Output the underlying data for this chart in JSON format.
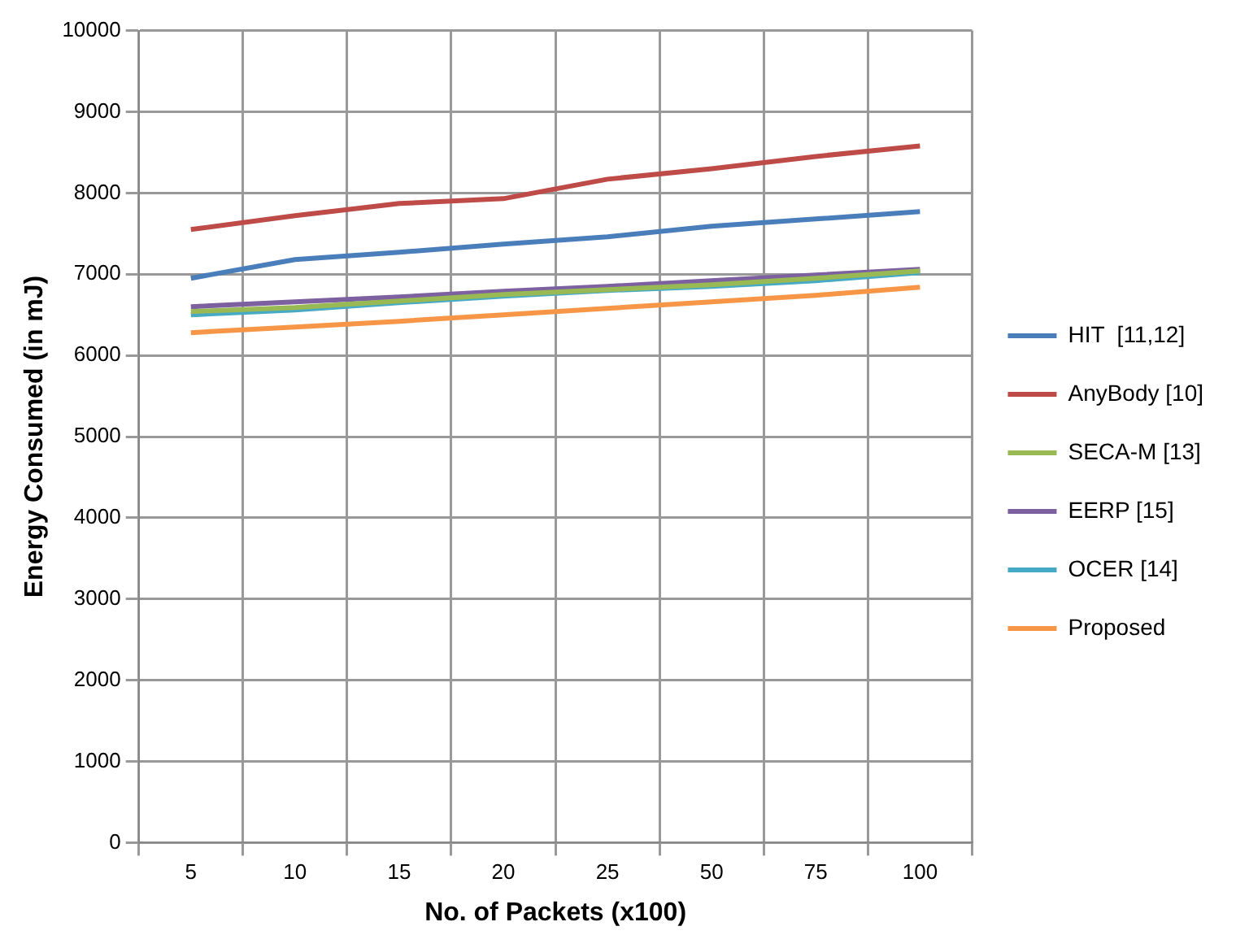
{
  "chart_data": {
    "type": "line",
    "xlabel": "No. of Packets (x100)",
    "ylabel": "Energy Consumed (in mJ)",
    "categories": [
      "5",
      "10",
      "15",
      "20",
      "25",
      "50",
      "75",
      "100"
    ],
    "series": [
      {
        "name": "HIT  [11,12]",
        "color": "#4a7ebb",
        "values": [
          6950,
          7180,
          7270,
          7370,
          7460,
          7590,
          7680,
          7770
        ]
      },
      {
        "name": "AnyBody [10]",
        "color": "#be4b48",
        "values": [
          7550,
          7720,
          7870,
          7930,
          8170,
          8300,
          8450,
          8580
        ]
      },
      {
        "name": "SECA-M [13]",
        "color": "#98b954",
        "values": [
          6540,
          6590,
          6670,
          6750,
          6810,
          6870,
          6950,
          7040
        ]
      },
      {
        "name": "EERP [15]",
        "color": "#7d60a0",
        "values": [
          6600,
          6660,
          6720,
          6790,
          6850,
          6920,
          6990,
          7060
        ]
      },
      {
        "name": "OCER [14]",
        "color": "#46aac5",
        "values": [
          6500,
          6560,
          6650,
          6730,
          6800,
          6850,
          6920,
          7020
        ]
      },
      {
        "name": "Proposed",
        "color": "#f79646",
        "values": [
          6280,
          6350,
          6420,
          6500,
          6580,
          6660,
          6740,
          6840
        ]
      }
    ],
    "ylim": [
      0,
      10000
    ],
    "yticks": [
      0,
      1000,
      2000,
      3000,
      4000,
      5000,
      6000,
      7000,
      8000,
      9000,
      10000
    ],
    "grid": true,
    "legend": "right",
    "marker": "none",
    "line_style": "solid"
  }
}
